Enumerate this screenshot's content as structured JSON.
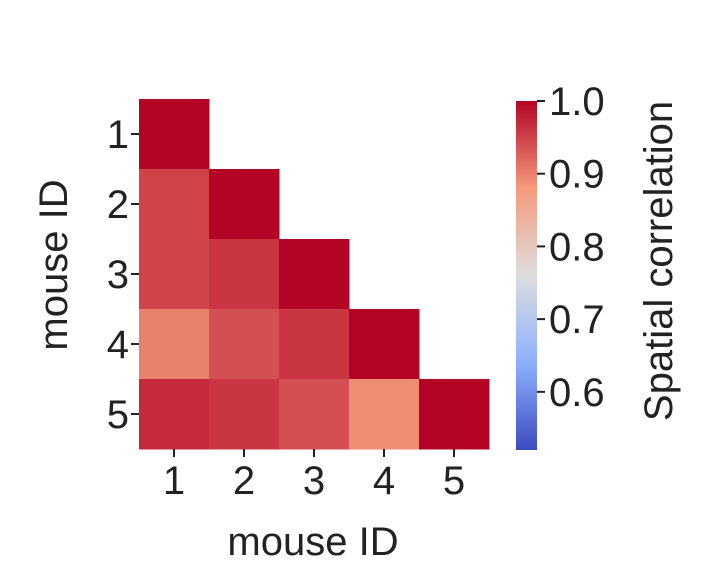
{
  "chart_data": {
    "type": "heatmap",
    "title": "",
    "xlabel": "mouse ID",
    "ylabel": "mouse ID",
    "x_categories": [
      "1",
      "2",
      "3",
      "4",
      "5"
    ],
    "y_categories": [
      "1",
      "2",
      "3",
      "4",
      "5"
    ],
    "lower_triangle_only": true,
    "matrix": [
      [
        1.0,
        null,
        null,
        null,
        null
      ],
      [
        0.95,
        1.0,
        null,
        null,
        null
      ],
      [
        0.95,
        0.96,
        1.0,
        null,
        null
      ],
      [
        0.9,
        0.94,
        0.96,
        1.0,
        null
      ],
      [
        0.97,
        0.96,
        0.94,
        0.89,
        1.0
      ]
    ],
    "colorbar": {
      "label": "Spatial correlation",
      "colormap": "coolwarm",
      "range": [
        0.52,
        1.0
      ],
      "ticks": [
        1.0,
        0.9,
        0.8,
        0.7,
        0.6
      ],
      "tick_labels": [
        "1.0",
        "0.9",
        "0.8",
        "0.7",
        "0.6"
      ]
    }
  }
}
